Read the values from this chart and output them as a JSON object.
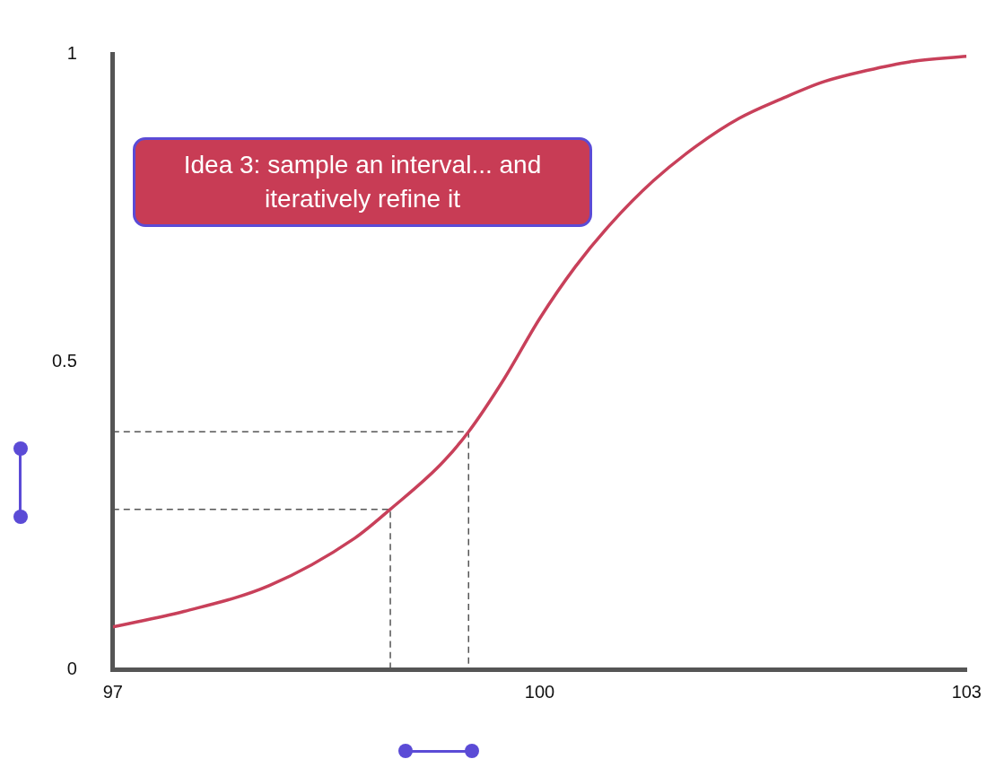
{
  "chart_data": {
    "type": "line",
    "annotations": [
      "Idea 3: sample an interval... and iteratively refine it"
    ],
    "xlim": [
      97,
      103
    ],
    "xticks": [
      97,
      100,
      103
    ],
    "ylim": [
      0,
      1
    ],
    "yticks": [
      0,
      0.5,
      1
    ],
    "grid": false,
    "legend": false,
    "marker": "none",
    "series": [
      {
        "color": "#c8405a",
        "x": [
          97,
          97.5,
          98.1,
          98.7,
          98.95,
          99.3,
          99.5,
          99.75,
          100,
          100.25,
          100.5,
          100.8,
          101.1,
          101.4,
          101.7,
          102,
          102.3,
          102.6,
          103
        ],
        "values": [
          0.069,
          0.094,
          0.136,
          0.213,
          0.26,
          0.332,
          0.386,
          0.472,
          0.57,
          0.654,
          0.724,
          0.794,
          0.85,
          0.895,
          0.927,
          0.955,
          0.973,
          0.987,
          0.996
        ]
      },
      {
        "color": "#555555",
        "line_style": "dashed",
        "x": [
          97,
          98.95,
          98.95
        ],
        "values": [
          0.26,
          0.26,
          0
        ]
      },
      {
        "color": "#555555",
        "line_style": "dashed",
        "x": [
          97,
          99.5,
          99.5
        ],
        "values": [
          0.386,
          0.386,
          0
        ]
      }
    ]
  }
}
